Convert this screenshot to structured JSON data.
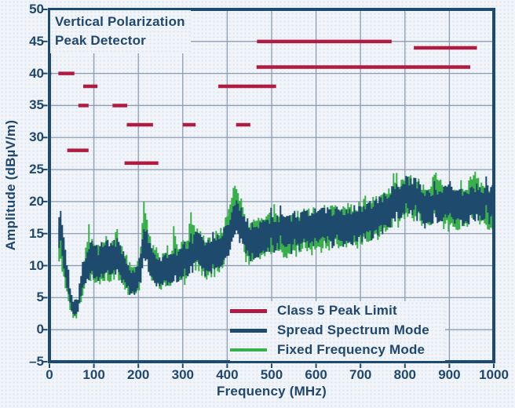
{
  "colors": {
    "navy_text": "#20486e",
    "plot_border": "#1d4a70",
    "gridline": "#8c9cb2",
    "limit_red": "#b01b41",
    "trace_blue": "#1e4a6e",
    "trace_green": "#3ab04c",
    "background": "#f1f4f9"
  },
  "chart_data": {
    "type": "line",
    "title_lines": [
      "Vertical Polarization",
      "Peak Detector"
    ],
    "xlabel": "Frequency (MHz)",
    "ylabel": "Amplitude (dBµV/m)",
    "xlim": [
      0,
      1000
    ],
    "ylim": [
      -5,
      50
    ],
    "grid": true,
    "xticks": [
      0,
      100,
      200,
      300,
      400,
      500,
      600,
      700,
      800,
      900,
      1000
    ],
    "xtick_labels": [
      "0",
      "100",
      "200",
      "300",
      "400",
      "500",
      "600",
      "700",
      "800",
      "900",
      "1000"
    ],
    "yticks": [
      50,
      45,
      40,
      35,
      30,
      25,
      20,
      15,
      10,
      5,
      0,
      -5
    ],
    "ytick_labels": [
      "50",
      "45",
      "40",
      "35",
      "30",
      "25",
      "20",
      "15",
      "10",
      "5",
      "0",
      "–5"
    ],
    "legend": {
      "position": "inside-bottom-right"
    },
    "series": [
      {
        "name": "Class 5 Peak Limit",
        "kind": "limit_segments",
        "color": "#b01b41",
        "line_width": 4.5,
        "segments_mhz_db": [
          [
            0,
            4,
            40
          ],
          [
            20,
            56,
            40
          ],
          [
            40,
            88,
            28
          ],
          [
            65,
            88,
            35
          ],
          [
            76,
            108,
            38
          ],
          [
            142,
            175,
            35
          ],
          [
            174,
            233,
            32
          ],
          [
            169,
            245,
            26
          ],
          [
            300,
            329,
            32
          ],
          [
            420,
            452,
            32
          ],
          [
            380,
            510,
            38
          ],
          [
            467,
            770,
            45
          ],
          [
            466,
            947,
            41
          ],
          [
            820,
            962,
            44
          ]
        ]
      },
      {
        "name": "Spread Spectrum Mode",
        "kind": "noisy_band",
        "color": "#1e4a6e",
        "seed": 7,
        "start_freq": 20,
        "max_band_db": 4.2,
        "band_ratio": 0.32,
        "upper_envelope": [
          [
            20,
            16.5
          ],
          [
            21,
            18.3
          ],
          [
            23,
            18.6
          ],
          [
            25,
            18.2
          ],
          [
            27,
            16.8
          ],
          [
            30,
            15.2
          ],
          [
            33,
            13.2
          ],
          [
            36,
            11.2
          ],
          [
            40,
            9.2
          ],
          [
            44,
            7.2
          ],
          [
            48,
            5.8
          ],
          [
            52,
            5.0
          ],
          [
            56,
            4.4
          ],
          [
            60,
            4.6
          ],
          [
            63,
            5.6
          ],
          [
            66,
            7.2
          ],
          [
            70,
            8.8
          ],
          [
            74,
            10.2
          ],
          [
            78,
            11.2
          ],
          [
            82,
            12.2
          ],
          [
            86,
            13.2
          ],
          [
            90,
            13.6
          ],
          [
            95,
            13.1
          ],
          [
            100,
            12.6
          ],
          [
            108,
            12.4
          ],
          [
            115,
            12.9
          ],
          [
            122,
            13.1
          ],
          [
            130,
            12.6
          ],
          [
            138,
            12.8
          ],
          [
            145,
            13.3
          ],
          [
            152,
            13.9
          ],
          [
            156,
            13.1
          ],
          [
            162,
            12.1
          ],
          [
            168,
            11.2
          ],
          [
            175,
            10.3
          ],
          [
            182,
            9.6
          ],
          [
            188,
            9.1
          ],
          [
            193,
            9.3
          ],
          [
            197,
            10.1
          ],
          [
            202,
            11.6
          ],
          [
            206,
            13.1
          ],
          [
            210,
            14.9
          ],
          [
            214,
            15.4
          ],
          [
            218,
            14.8
          ],
          [
            222,
            13.6
          ],
          [
            227,
            12.4
          ],
          [
            232,
            11.7
          ],
          [
            238,
            11.3
          ],
          [
            245,
            11.0
          ],
          [
            252,
            10.9
          ],
          [
            260,
            11.2
          ],
          [
            270,
            11.6
          ],
          [
            280,
            12.0
          ],
          [
            290,
            12.4
          ],
          [
            300,
            12.9
          ],
          [
            310,
            13.3
          ],
          [
            318,
            13.9
          ],
          [
            324,
            14.4
          ],
          [
            329,
            15.7
          ],
          [
            333,
            14.9
          ],
          [
            338,
            14.0
          ],
          [
            345,
            13.7
          ],
          [
            352,
            13.9
          ],
          [
            360,
            14.1
          ],
          [
            370,
            14.3
          ],
          [
            380,
            14.8
          ],
          [
            390,
            15.3
          ],
          [
            400,
            16.3
          ],
          [
            406,
            17.6
          ],
          [
            412,
            18.9
          ],
          [
            418,
            19.7
          ],
          [
            424,
            19.6
          ],
          [
            430,
            18.7
          ],
          [
            436,
            17.4
          ],
          [
            442,
            16.7
          ],
          [
            450,
            16.3
          ],
          [
            460,
            16.3
          ],
          [
            470,
            16.5
          ],
          [
            480,
            16.7
          ],
          [
            492,
            16.9
          ],
          [
            505,
            17.1
          ],
          [
            520,
            17.2
          ],
          [
            535,
            17.4
          ],
          [
            550,
            17.6
          ],
          [
            570,
            17.9
          ],
          [
            590,
            18.1
          ],
          [
            610,
            18.3
          ],
          [
            630,
            18.4
          ],
          [
            650,
            18.5
          ],
          [
            670,
            18.6
          ],
          [
            690,
            18.9
          ],
          [
            705,
            19.1
          ],
          [
            720,
            19.5
          ],
          [
            735,
            20.0
          ],
          [
            750,
            20.7
          ],
          [
            765,
            21.4
          ],
          [
            780,
            22.2
          ],
          [
            792,
            22.9
          ],
          [
            802,
            23.3
          ],
          [
            812,
            23.3
          ],
          [
            822,
            23.0
          ],
          [
            832,
            22.4
          ],
          [
            842,
            21.7
          ],
          [
            852,
            21.4
          ],
          [
            862,
            21.6
          ],
          [
            875,
            21.9
          ],
          [
            890,
            21.9
          ],
          [
            905,
            21.8
          ],
          [
            920,
            21.6
          ],
          [
            935,
            21.7
          ],
          [
            950,
            21.9
          ],
          [
            965,
            22.1
          ],
          [
            980,
            21.9
          ],
          [
            1000,
            21.9
          ]
        ]
      },
      {
        "name": "Fixed Frequency Mode",
        "kind": "noisy_band",
        "color": "#3ab04c",
        "seed": 13,
        "start_freq": 20,
        "max_band_db": 5.2,
        "band_ratio": 0.38,
        "upper_envelope": [
          [
            20,
            15.8
          ],
          [
            22,
            17.3
          ],
          [
            24,
            17.0
          ],
          [
            26,
            15.8
          ],
          [
            29,
            14.3
          ],
          [
            32,
            12.8
          ],
          [
            35,
            11.0
          ],
          [
            39,
            9.0
          ],
          [
            43,
            7.0
          ],
          [
            47,
            5.4
          ],
          [
            51,
            4.6
          ],
          [
            55,
            3.9
          ],
          [
            59,
            4.1
          ],
          [
            62,
            5.1
          ],
          [
            65,
            6.8
          ],
          [
            69,
            8.6
          ],
          [
            73,
            10.3
          ],
          [
            77,
            11.4
          ],
          [
            81,
            12.4
          ],
          [
            84,
            14.6
          ],
          [
            86,
            17.1
          ],
          [
            88,
            15.2
          ],
          [
            91,
            13.9
          ],
          [
            95,
            13.3
          ],
          [
            100,
            12.9
          ],
          [
            106,
            12.6
          ],
          [
            112,
            12.8
          ],
          [
            118,
            13.2
          ],
          [
            124,
            13.1
          ],
          [
            127,
            14.4
          ],
          [
            130,
            13.2
          ],
          [
            136,
            13.0
          ],
          [
            142,
            13.2
          ],
          [
            146,
            14.0
          ],
          [
            149,
            15.7
          ],
          [
            152,
            15.0
          ],
          [
            156,
            13.6
          ],
          [
            161,
            12.6
          ],
          [
            166,
            11.8
          ],
          [
            172,
            11.0
          ],
          [
            178,
            10.2
          ],
          [
            184,
            9.4
          ],
          [
            189,
            9.0
          ],
          [
            194,
            9.4
          ],
          [
            198,
            10.6
          ],
          [
            202,
            12.4
          ],
          [
            206,
            14.9
          ],
          [
            209,
            17.8
          ],
          [
            211,
            20.9
          ],
          [
            213,
            19.9
          ],
          [
            216,
            17.4
          ],
          [
            219,
            16.1
          ],
          [
            223,
            14.6
          ],
          [
            227,
            13.2
          ],
          [
            231,
            12.7
          ],
          [
            234,
            13.6
          ],
          [
            237,
            12.7
          ],
          [
            241,
            11.8
          ],
          [
            246,
            11.3
          ],
          [
            252,
            11.2
          ],
          [
            258,
            11.4
          ],
          [
            264,
            11.7
          ],
          [
            270,
            12.0
          ],
          [
            275,
            12.9
          ],
          [
            278,
            16.9
          ],
          [
            281,
            14.2
          ],
          [
            285,
            12.7
          ],
          [
            291,
            12.8
          ],
          [
            297,
            13.1
          ],
          [
            303,
            13.4
          ],
          [
            308,
            13.9
          ],
          [
            313,
            16.0
          ],
          [
            316,
            18.6
          ],
          [
            319,
            17.3
          ],
          [
            323,
            15.8
          ],
          [
            327,
            15.2
          ],
          [
            331,
            15.6
          ],
          [
            336,
            14.9
          ],
          [
            342,
            14.2
          ],
          [
            349,
            14.2
          ],
          [
            356,
            14.5
          ],
          [
            363,
            14.3
          ],
          [
            370,
            14.6
          ],
          [
            377,
            15.1
          ],
          [
            384,
            15.4
          ],
          [
            391,
            16.1
          ],
          [
            397,
            17.2
          ],
          [
            402,
            19.1
          ],
          [
            407,
            20.6
          ],
          [
            412,
            21.5
          ],
          [
            417,
            21.8
          ],
          [
            421,
            21.2
          ],
          [
            425,
            20.6
          ],
          [
            428,
            21.1
          ],
          [
            432,
            19.6
          ],
          [
            437,
            18.1
          ],
          [
            442,
            17.1
          ],
          [
            448,
            16.6
          ],
          [
            455,
            16.6
          ],
          [
            463,
            16.7
          ],
          [
            472,
            16.9
          ],
          [
            482,
            17.1
          ],
          [
            492,
            17.4
          ],
          [
            500,
            18.1
          ],
          [
            505,
            19.0
          ],
          [
            510,
            18.1
          ],
          [
            520,
            17.7
          ],
          [
            532,
            17.7
          ],
          [
            545,
            17.9
          ],
          [
            558,
            18.0
          ],
          [
            572,
            18.2
          ],
          [
            586,
            18.3
          ],
          [
            600,
            18.6
          ],
          [
            615,
            18.7
          ],
          [
            630,
            18.8
          ],
          [
            645,
            18.9
          ],
          [
            660,
            18.9
          ],
          [
            675,
            19.1
          ],
          [
            690,
            19.3
          ],
          [
            705,
            19.6
          ],
          [
            720,
            19.9
          ],
          [
            735,
            20.4
          ],
          [
            750,
            21.0
          ],
          [
            765,
            21.7
          ],
          [
            780,
            22.5
          ],
          [
            792,
            23.1
          ],
          [
            802,
            23.5
          ],
          [
            812,
            23.5
          ],
          [
            822,
            23.2
          ],
          [
            832,
            22.6
          ],
          [
            842,
            22.0
          ],
          [
            852,
            21.7
          ],
          [
            858,
            22.6
          ],
          [
            864,
            24.5
          ],
          [
            869,
            24.7
          ],
          [
            874,
            23.2
          ],
          [
            882,
            22.2
          ],
          [
            892,
            22.0
          ],
          [
            904,
            21.9
          ],
          [
            916,
            21.8
          ],
          [
            928,
            21.9
          ],
          [
            940,
            22.2
          ],
          [
            947,
            23.3
          ],
          [
            953,
            24.2
          ],
          [
            959,
            24.1
          ],
          [
            966,
            23.1
          ],
          [
            976,
            22.3
          ],
          [
            988,
            22.1
          ],
          [
            1000,
            22.1
          ]
        ]
      }
    ]
  }
}
